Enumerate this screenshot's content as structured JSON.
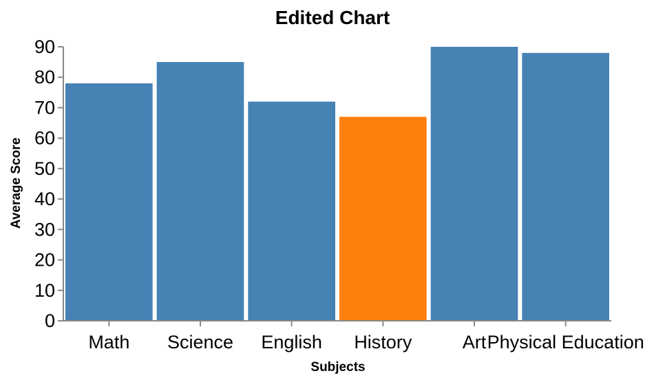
{
  "chart_data": {
    "type": "bar",
    "title": "Edited Chart",
    "xlabel": "Subjects",
    "ylabel": "Average Score",
    "categories": [
      "Math",
      "Science",
      "English",
      "History",
      "Art",
      "Physical Education"
    ],
    "values": [
      78,
      85,
      72,
      67,
      90,
      88
    ],
    "highlight_category": "History",
    "ylim": [
      0,
      90
    ],
    "yticks": [
      0,
      10,
      20,
      30,
      40,
      50,
      60,
      70,
      80,
      90
    ],
    "grid": false,
    "legend": "none"
  },
  "colors": {
    "bar": "#4682b4",
    "highlight": "#ff7f0e",
    "axis": "#888888"
  }
}
